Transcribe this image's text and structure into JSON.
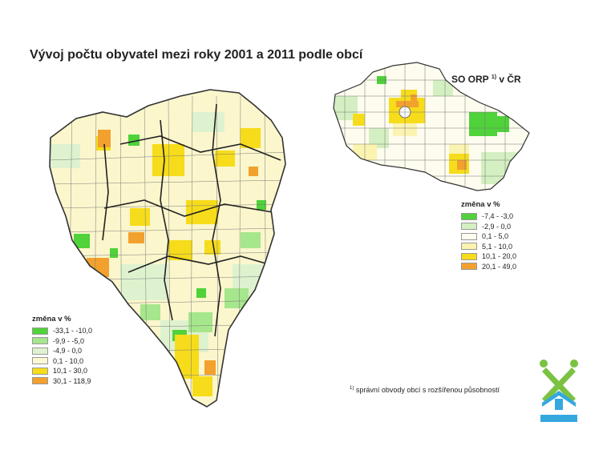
{
  "title": "Vývoj počtu obyvatel mezi roky 2001 a 2011 podle obcí",
  "inset": {
    "title_main": "SO ORP",
    "title_sup": "1)",
    "title_rest": " v ČR"
  },
  "legend_main": {
    "title": "změna v %",
    "items": [
      {
        "label": "-33,1 - -10,0",
        "color": "#4fd23a"
      },
      {
        "label": "-9,9 -   -5,0",
        "color": "#a6e68c"
      },
      {
        "label": "-4,9 -    0,0",
        "color": "#dff2cf"
      },
      {
        "label": " 0,1 -  10,0",
        "color": "#fbf8d3"
      },
      {
        "label": "10,1 -  30,0",
        "color": "#f6dc1a"
      },
      {
        "label": "30,1 - 118,9",
        "color": "#f2a12e"
      }
    ]
  },
  "legend_inset": {
    "title": "změna v %",
    "items": [
      {
        "label": "-7,4 -  -3,0",
        "color": "#4fd23a"
      },
      {
        "label": "-2,9 -   0,0",
        "color": "#d4efc1"
      },
      {
        "label": " 0,1 -   5,0",
        "color": "#fdfcee"
      },
      {
        "label": " 5,1 -  10,0",
        "color": "#fbf3b0"
      },
      {
        "label": "10,1 - 20,0",
        "color": "#f6dc1a"
      },
      {
        "label": "20,1 - 49,0",
        "color": "#f2a12e"
      }
    ]
  },
  "footnote": {
    "sup": "1)",
    "text": " správní obvody obcí s rozšířenou působností"
  },
  "logo": {
    "icon": "czso-logo-icon",
    "green": "#7cc242",
    "blue": "#35a8e0"
  }
}
